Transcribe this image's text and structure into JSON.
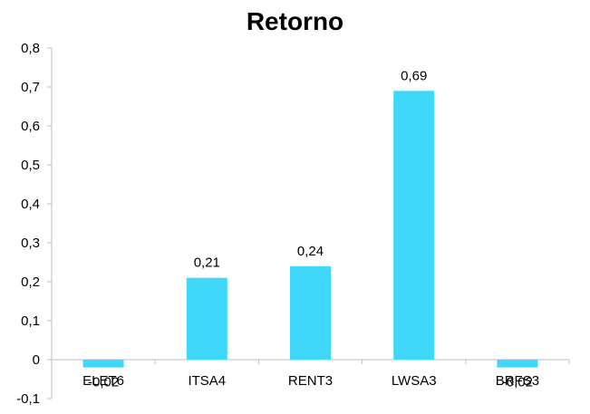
{
  "chart_data": {
    "type": "bar",
    "title": "Retorno",
    "categories": [
      "ELET6",
      "ITSA4",
      "RENT3",
      "LWSA3",
      "BRFS3"
    ],
    "values": [
      -0.02,
      0.21,
      0.24,
      0.69,
      -0.02
    ],
    "data_labels": [
      "-0,02",
      "0,21",
      "0,24",
      "0,69",
      "-0,02"
    ],
    "ylim": [
      -0.1,
      0.8
    ],
    "yticks": [
      -0.1,
      0,
      0.1,
      0.2,
      0.3,
      0.4,
      0.5,
      0.6,
      0.7,
      0.8
    ],
    "ytick_labels": [
      "-0,1",
      "0",
      "0,1",
      "0,2",
      "0,3",
      "0,4",
      "0,5",
      "0,6",
      "0,7",
      "0,8"
    ],
    "xlabel": "",
    "ylabel": "",
    "grid": false,
    "legend": "none",
    "bar_color": "#3FD8FB",
    "axis_color": "#BFBFBF"
  }
}
